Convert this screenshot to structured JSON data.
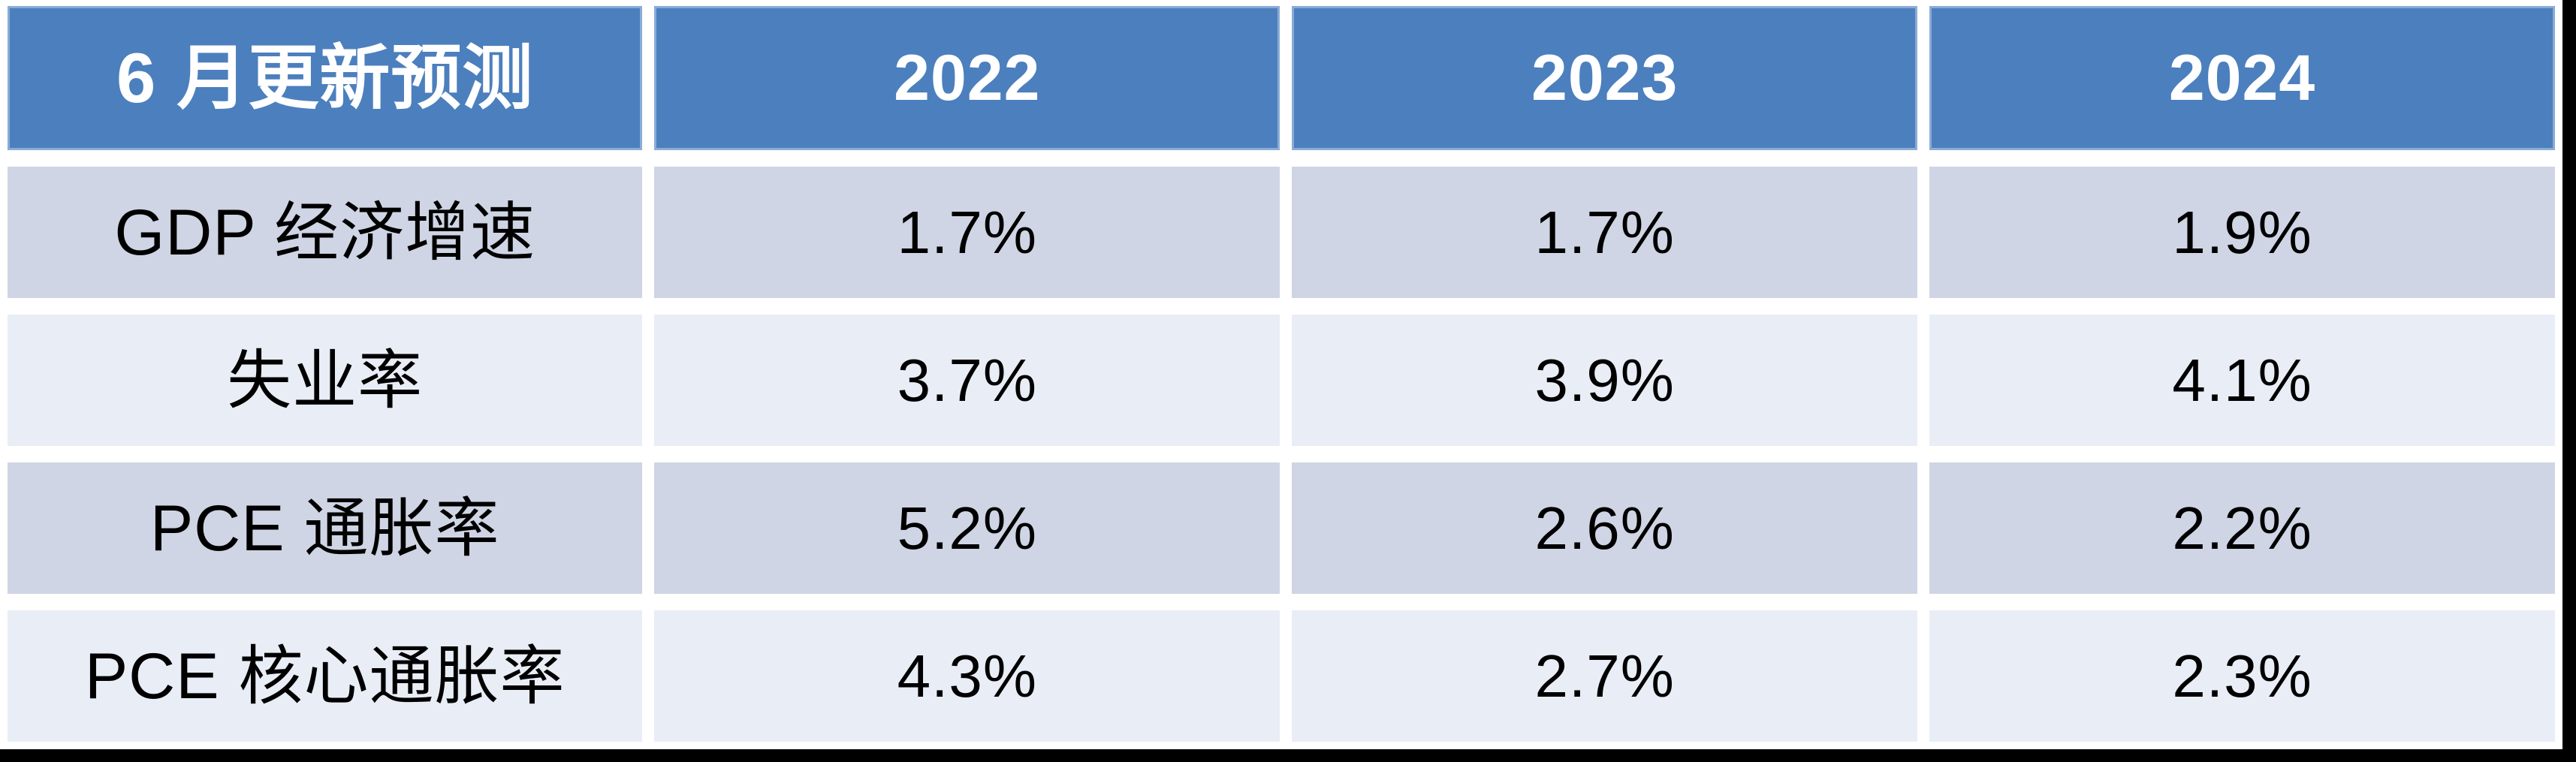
{
  "table": {
    "header": {
      "title": "6 月更新预测",
      "years": [
        "2022",
        "2023",
        "2024"
      ]
    },
    "rows": [
      {
        "label": "GDP 经济增速",
        "values": [
          "1.7%",
          "1.7%",
          "1.9%"
        ]
      },
      {
        "label": "失业率",
        "values": [
          "3.7%",
          "3.9%",
          "4.1%"
        ]
      },
      {
        "label": "PCE 通胀率",
        "values": [
          "5.2%",
          "2.6%",
          "2.2%"
        ]
      },
      {
        "label": "PCE 核心通胀率",
        "values": [
          "4.3%",
          "2.7%",
          "2.3%"
        ]
      }
    ]
  },
  "colors": {
    "header_blue": "#4C7FBD",
    "band_dark": "#CFD5E4",
    "band_light": "#E9EDF6",
    "header_text": "#FFFFFF",
    "body_text": "#000000",
    "separator": "#FFFFFF",
    "letterbox": "#000000"
  },
  "chart_data": {
    "type": "table",
    "title": "6 月更新预测",
    "columns": [
      "6 月更新预测",
      "2022",
      "2023",
      "2024"
    ],
    "rows": [
      [
        "GDP 经济增速",
        "1.7%",
        "1.7%",
        "1.9%"
      ],
      [
        "失业率",
        "3.7%",
        "3.9%",
        "4.1%"
      ],
      [
        "PCE 通胀率",
        "5.2%",
        "2.6%",
        "2.2%"
      ],
      [
        "PCE 核心通胀率",
        "4.3%",
        "2.7%",
        "2.3%"
      ]
    ],
    "series": [
      {
        "name": "GDP 经济增速",
        "values": [
          1.7,
          1.7,
          1.9
        ]
      },
      {
        "name": "失业率",
        "values": [
          3.7,
          3.9,
          4.1
        ]
      },
      {
        "name": "PCE 通胀率",
        "values": [
          5.2,
          2.6,
          2.2
        ]
      },
      {
        "name": "PCE 核心通胀率",
        "values": [
          4.3,
          2.7,
          2.3
        ]
      }
    ],
    "categories": [
      "2022",
      "2023",
      "2024"
    ],
    "unit": "%"
  }
}
